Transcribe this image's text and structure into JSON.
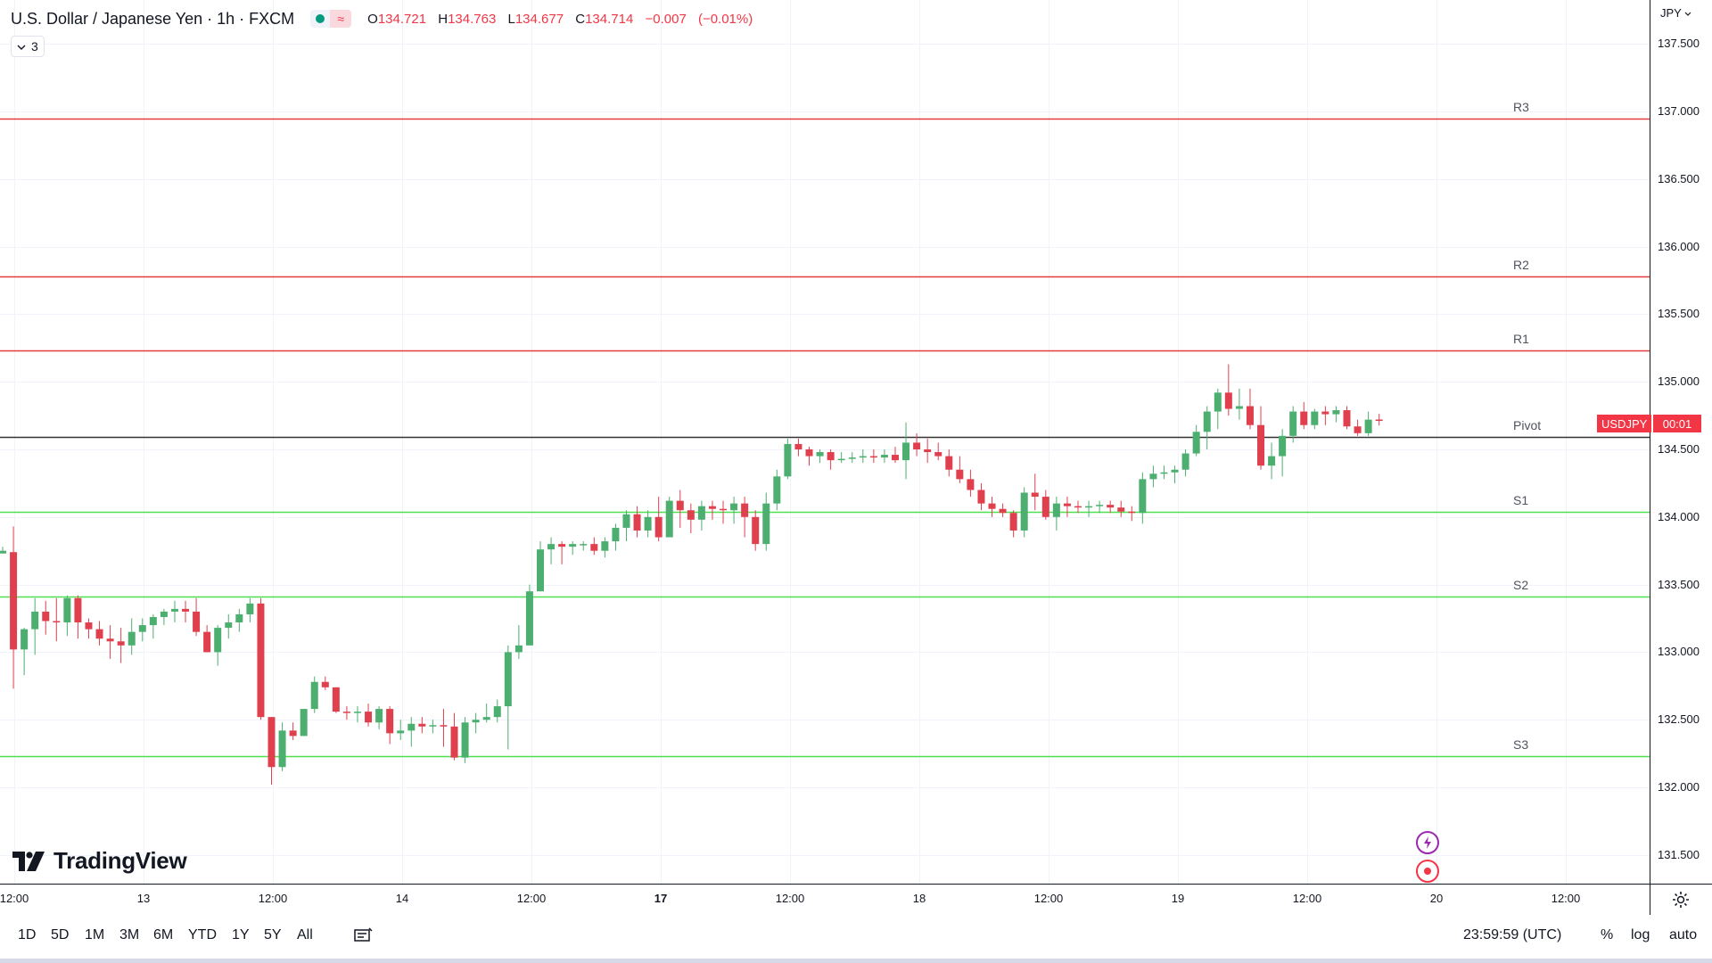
{
  "header": {
    "title": "U.S. Dollar / Japanese Yen · 1h · FXCM",
    "ohlc": [
      {
        "label": "O",
        "value": "134.721"
      },
      {
        "label": "H",
        "value": "134.763"
      },
      {
        "label": "L",
        "value": "134.677"
      },
      {
        "label": "C",
        "value": "134.714"
      },
      {
        "label": "",
        "value": "−0.007"
      },
      {
        "label": "",
        "value": "(−0.01%)"
      }
    ],
    "indicator_count": "3"
  },
  "currency": "JPY",
  "symbol_tag": "USDJPY",
  "countdown": "00:01",
  "colors": {
    "up": "#089981",
    "down": "#f23645",
    "candle_up": "#4caf70",
    "candle_down": "#e0404e",
    "resistance": "#e33b3b",
    "support": "#4ee04e",
    "pivot": "#333333"
  },
  "chart_data": {
    "type": "candlestick",
    "ylim": [
      131.3,
      137.65
    ],
    "price_ticks": [
      "131.500",
      "132.000",
      "132.500",
      "133.000",
      "133.500",
      "134.000",
      "134.500",
      "135.000",
      "135.500",
      "136.000",
      "136.500",
      "137.000",
      "137.500"
    ],
    "time_labels": [
      {
        "text": "12:00",
        "bold": false
      },
      {
        "text": "13",
        "bold": false
      },
      {
        "text": "12:00",
        "bold": false
      },
      {
        "text": "14",
        "bold": false
      },
      {
        "text": "12:00",
        "bold": false
      },
      {
        "text": "17",
        "bold": true
      },
      {
        "text": "12:00",
        "bold": false
      },
      {
        "text": "18",
        "bold": false
      },
      {
        "text": "12:00",
        "bold": false
      },
      {
        "text": "19",
        "bold": false
      },
      {
        "text": "12:00",
        "bold": false
      },
      {
        "text": "20",
        "bold": false
      },
      {
        "text": "12:00",
        "bold": false
      }
    ],
    "levels": [
      {
        "name": "R3",
        "value": 136.95,
        "kind": "resistance"
      },
      {
        "name": "R2",
        "value": 135.78,
        "kind": "resistance"
      },
      {
        "name": "R1",
        "value": 135.23,
        "kind": "resistance"
      },
      {
        "name": "Pivot",
        "value": 134.59,
        "kind": "pivot"
      },
      {
        "name": "S1",
        "value": 134.04,
        "kind": "support"
      },
      {
        "name": "S2",
        "value": 133.41,
        "kind": "support"
      },
      {
        "name": "S3",
        "value": 132.23,
        "kind": "support"
      }
    ],
    "candles": [
      [
        133.73,
        133.78,
        133.73,
        133.75
      ],
      [
        133.74,
        133.93,
        132.73,
        133.02
      ],
      [
        133.02,
        133.18,
        132.83,
        133.17
      ],
      [
        133.17,
        133.4,
        132.98,
        133.3
      ],
      [
        133.3,
        133.38,
        133.13,
        133.23
      ],
      [
        133.23,
        133.4,
        133.08,
        133.22
      ],
      [
        133.22,
        133.42,
        133.12,
        133.4
      ],
      [
        133.4,
        133.42,
        133.1,
        133.22
      ],
      [
        133.22,
        133.25,
        133.1,
        133.17
      ],
      [
        133.17,
        133.23,
        133.05,
        133.1
      ],
      [
        133.1,
        133.2,
        132.95,
        133.08
      ],
      [
        133.08,
        133.18,
        132.92,
        133.05
      ],
      [
        133.05,
        133.25,
        132.98,
        133.15
      ],
      [
        133.15,
        133.25,
        133.08,
        133.2
      ],
      [
        133.2,
        133.28,
        133.1,
        133.26
      ],
      [
        133.26,
        133.32,
        133.2,
        133.3
      ],
      [
        133.3,
        133.38,
        133.22,
        133.32
      ],
      [
        133.32,
        133.38,
        133.22,
        133.3
      ],
      [
        133.3,
        133.4,
        133.12,
        133.15
      ],
      [
        133.15,
        133.2,
        133.0,
        133.0
      ],
      [
        133.0,
        133.2,
        132.9,
        133.18
      ],
      [
        133.18,
        133.28,
        133.1,
        133.22
      ],
      [
        133.22,
        133.32,
        133.15,
        133.28
      ],
      [
        133.28,
        133.4,
        133.22,
        133.36
      ],
      [
        133.36,
        133.4,
        132.5,
        132.52
      ],
      [
        132.52,
        132.52,
        132.02,
        132.15
      ],
      [
        132.15,
        132.48,
        132.12,
        132.42
      ],
      [
        132.42,
        132.48,
        132.35,
        132.38
      ],
      [
        132.38,
        132.58,
        132.38,
        132.58
      ],
      [
        132.58,
        132.82,
        132.55,
        132.78
      ],
      [
        132.78,
        132.82,
        132.72,
        132.74
      ],
      [
        132.74,
        132.74,
        132.55,
        132.56
      ],
      [
        132.56,
        132.6,
        132.5,
        132.55
      ],
      [
        132.55,
        132.6,
        132.48,
        132.56
      ],
      [
        132.56,
        132.62,
        132.45,
        132.48
      ],
      [
        132.48,
        132.6,
        132.43,
        132.58
      ],
      [
        132.58,
        132.6,
        132.32,
        132.4
      ],
      [
        132.4,
        132.5,
        132.35,
        132.42
      ],
      [
        132.42,
        132.52,
        132.3,
        132.47
      ],
      [
        132.47,
        132.52,
        132.4,
        132.45
      ],
      [
        132.45,
        132.5,
        132.4,
        132.46
      ],
      [
        132.46,
        132.58,
        132.3,
        132.45
      ],
      [
        132.45,
        132.55,
        132.2,
        132.22
      ],
      [
        132.22,
        132.52,
        132.18,
        132.48
      ],
      [
        132.48,
        132.55,
        132.4,
        132.5
      ],
      [
        132.5,
        132.62,
        132.48,
        132.52
      ],
      [
        132.52,
        132.65,
        132.48,
        132.6
      ],
      [
        132.6,
        133.05,
        132.28,
        133.0
      ],
      [
        133.0,
        133.2,
        132.95,
        133.05
      ],
      [
        133.05,
        133.5,
        133.05,
        133.45
      ],
      [
        133.45,
        133.82,
        133.45,
        133.76
      ],
      [
        133.76,
        133.85,
        133.65,
        133.8
      ],
      [
        133.8,
        133.82,
        133.65,
        133.78
      ],
      [
        133.78,
        133.82,
        133.72,
        133.8
      ],
      [
        133.8,
        133.82,
        133.75,
        133.8
      ],
      [
        133.8,
        133.85,
        133.72,
        133.75
      ],
      [
        133.75,
        133.85,
        133.7,
        133.82
      ],
      [
        133.82,
        133.95,
        133.75,
        133.92
      ],
      [
        133.92,
        134.05,
        133.82,
        134.02
      ],
      [
        134.02,
        134.08,
        133.85,
        133.9
      ],
      [
        133.9,
        134.05,
        133.85,
        134.0
      ],
      [
        134.0,
        134.15,
        133.82,
        133.85
      ],
      [
        133.85,
        134.15,
        133.85,
        134.12
      ],
      [
        134.12,
        134.2,
        133.92,
        134.05
      ],
      [
        134.05,
        134.1,
        133.88,
        133.98
      ],
      [
        133.98,
        134.12,
        133.9,
        134.08
      ],
      [
        134.08,
        134.12,
        133.98,
        134.06
      ],
      [
        134.06,
        134.12,
        133.95,
        134.05
      ],
      [
        134.05,
        134.15,
        133.95,
        134.1
      ],
      [
        134.1,
        134.15,
        133.85,
        134.0
      ],
      [
        134.0,
        134.05,
        133.75,
        133.8
      ],
      [
        133.8,
        134.18,
        133.75,
        134.1
      ],
      [
        134.1,
        134.35,
        134.05,
        134.3
      ],
      [
        134.3,
        134.58,
        134.28,
        134.54
      ],
      [
        134.54,
        134.58,
        134.45,
        134.5
      ],
      [
        134.5,
        134.52,
        134.38,
        134.45
      ],
      [
        134.45,
        134.5,
        134.4,
        134.48
      ],
      [
        134.48,
        134.5,
        134.35,
        134.42
      ],
      [
        134.42,
        134.48,
        134.4,
        134.43
      ],
      [
        134.43,
        134.48,
        134.4,
        134.44
      ],
      [
        134.44,
        134.5,
        134.4,
        134.45
      ],
      [
        134.45,
        134.5,
        134.4,
        134.44
      ],
      [
        134.44,
        134.5,
        134.4,
        134.46
      ],
      [
        134.46,
        134.52,
        134.4,
        134.42
      ],
      [
        134.42,
        134.7,
        134.28,
        134.55
      ],
      [
        134.55,
        134.62,
        134.45,
        134.5
      ],
      [
        134.5,
        134.58,
        134.4,
        134.48
      ],
      [
        134.48,
        134.55,
        134.42,
        134.45
      ],
      [
        134.45,
        134.5,
        134.3,
        134.35
      ],
      [
        134.35,
        134.45,
        134.25,
        134.28
      ],
      [
        134.28,
        134.35,
        134.15,
        134.2
      ],
      [
        134.2,
        134.25,
        134.05,
        134.1
      ],
      [
        134.1,
        134.15,
        134.0,
        134.06
      ],
      [
        134.06,
        134.1,
        134.0,
        134.03
      ],
      [
        134.03,
        134.05,
        133.85,
        133.9
      ],
      [
        133.9,
        134.22,
        133.85,
        134.18
      ],
      [
        134.18,
        134.32,
        134.05,
        134.15
      ],
      [
        134.15,
        134.2,
        133.98,
        134.0
      ],
      [
        134.0,
        134.15,
        133.9,
        134.1
      ],
      [
        134.1,
        134.15,
        134.0,
        134.08
      ],
      [
        134.08,
        134.12,
        134.03,
        134.07
      ],
      [
        134.07,
        134.12,
        134.0,
        134.08
      ],
      [
        134.08,
        134.12,
        134.03,
        134.09
      ],
      [
        134.09,
        134.12,
        134.03,
        134.07
      ],
      [
        134.07,
        134.12,
        134.0,
        134.04
      ],
      [
        134.04,
        134.08,
        133.97,
        134.03
      ],
      [
        134.03,
        134.33,
        133.95,
        134.28
      ],
      [
        134.28,
        134.38,
        134.22,
        134.32
      ],
      [
        134.32,
        134.38,
        134.28,
        134.33
      ],
      [
        134.33,
        134.38,
        134.25,
        134.35
      ],
      [
        134.35,
        134.5,
        134.3,
        134.47
      ],
      [
        134.47,
        134.68,
        134.45,
        134.63
      ],
      [
        134.63,
        134.82,
        134.5,
        134.78
      ],
      [
        134.78,
        134.95,
        134.65,
        134.92
      ],
      [
        134.92,
        135.13,
        134.75,
        134.8
      ],
      [
        134.8,
        134.95,
        134.72,
        134.82
      ],
      [
        134.82,
        134.95,
        134.65,
        134.68
      ],
      [
        134.68,
        134.82,
        134.35,
        134.38
      ],
      [
        134.38,
        134.55,
        134.28,
        134.45
      ],
      [
        134.45,
        134.65,
        134.3,
        134.6
      ],
      [
        134.6,
        134.82,
        134.55,
        134.78
      ],
      [
        134.78,
        134.85,
        134.65,
        134.68
      ],
      [
        134.68,
        134.8,
        134.65,
        134.78
      ],
      [
        134.78,
        134.82,
        134.68,
        134.76
      ],
      [
        134.76,
        134.82,
        134.7,
        134.79
      ],
      [
        134.79,
        134.82,
        134.65,
        134.67
      ],
      [
        134.67,
        134.72,
        134.6,
        134.62
      ],
      [
        134.62,
        134.78,
        134.6,
        134.72
      ],
      [
        134.721,
        134.763,
        134.677,
        134.714
      ]
    ]
  },
  "range_buttons": [
    "1D",
    "5D",
    "1M",
    "3M",
    "6M",
    "YTD",
    "1Y",
    "5Y",
    "All"
  ],
  "status": {
    "time": "23:59:59 (UTC)",
    "percent": "%",
    "log": "log",
    "auto": "auto"
  },
  "logo_text": "TradingView"
}
